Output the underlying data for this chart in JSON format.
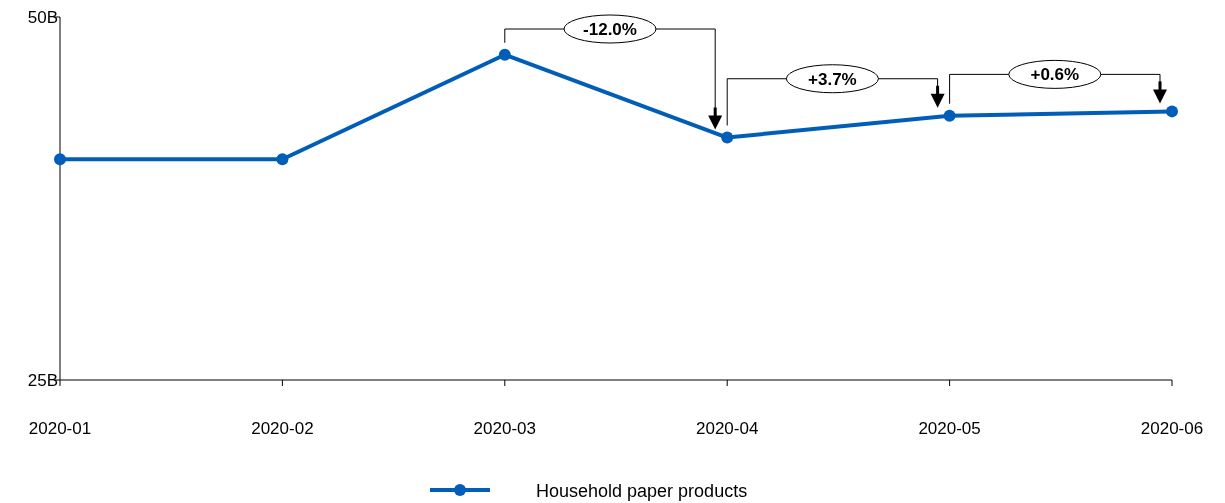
{
  "chart_data": {
    "type": "line",
    "categories": [
      "2020-01",
      "2020-02",
      "2020-03",
      "2020-04",
      "2020-05",
      "2020-06"
    ],
    "series": [
      {
        "name": "Household paper products",
        "color": "#005eb8",
        "values": [
          40.2,
          40.2,
          47.4,
          41.7,
          43.2,
          43.5
        ]
      }
    ],
    "ylim": [
      25,
      50
    ],
    "yticks": [
      {
        "value": 25,
        "label": "25B"
      },
      {
        "value": 50,
        "label": "50B"
      }
    ],
    "marker": "circle",
    "line_style": "solid",
    "grid": false,
    "legend": "bottom",
    "annotations": [
      "-12.0%",
      "+3.7%",
      "+0.6%"
    ]
  }
}
